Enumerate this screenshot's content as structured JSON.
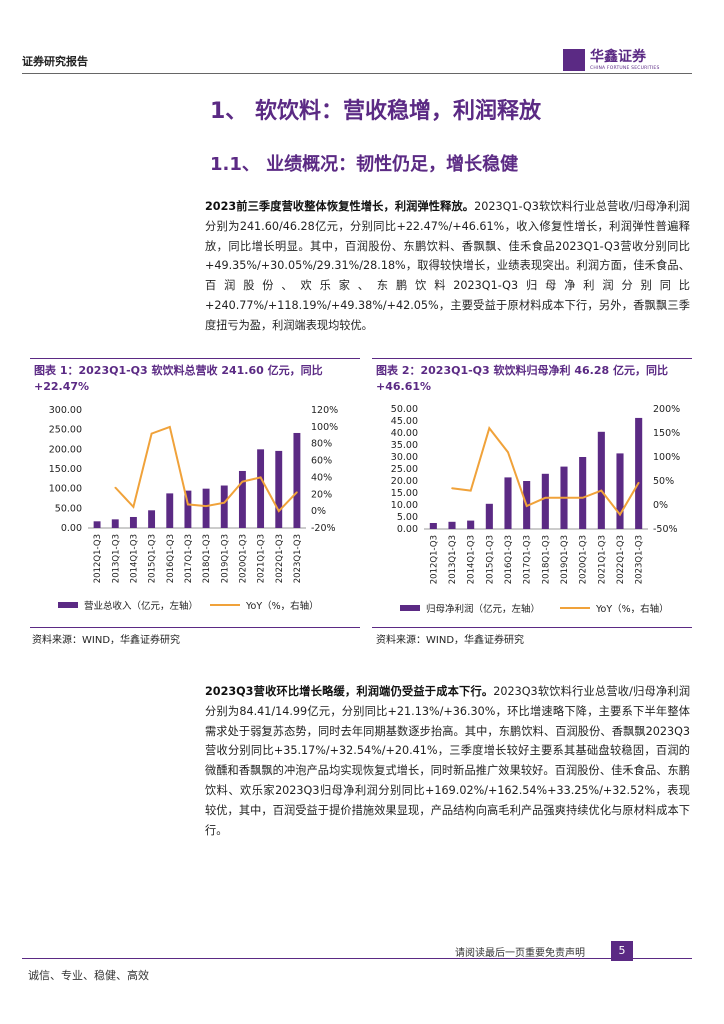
{
  "header": {
    "label": "证券研究报告",
    "logo_cn": "华鑫证券",
    "logo_en": "CHINA FORTUNE SECURITIES"
  },
  "headings": {
    "h1": "1、 软饮料：营收稳增，利润释放",
    "h2": "1.1、 业绩概况：韧性仍足，增长稳健"
  },
  "para1": {
    "bold": "2023前三季度营收整体恢复性增长，利润弹性释放。",
    "text": "2023Q1-Q3软饮料行业总营收/归母净利润分别为241.60/46.28亿元，分别同比+22.47%/+46.61%，收入修复性增长，利润弹性普遍释放，同比增长明显。其中，百润股份、东鹏饮料、香飘飘、佳禾食品2023Q1-Q3营收分别同比+49.35%/+30.05%/29.31%/28.18%，取得较快增长，业绩表现突出。利润方面，佳禾食品、百润股份、欢乐家、东鹏饮料2023Q1-Q3归母净利润分别同比+240.77%/+118.19%/+49.38%/+42.05%，主要受益于原材料成本下行，另外，香飘飘三季度扭亏为盈，利润端表现均较优。"
  },
  "fig1": {
    "title": "图表 1：2023Q1-Q3 软饮料总营收 241.60 亿元，同比+22.47%",
    "source": "资料来源：WIND，华鑫证券研究"
  },
  "fig2": {
    "title": "图表 2：2023Q1-Q3 软饮料归母净利 46.28 亿元，同比+46.61%",
    "source": "资料来源：WIND，华鑫证券研究"
  },
  "para2": {
    "bold": "2023Q3营收环比增长略缓，利润端仍受益于成本下行。",
    "text": "2023Q3软饮料行业总营收/归母净利润分别为84.41/14.99亿元，分别同比+21.13%/+36.30%，环比增速略下降，主要系下半年整体需求处于弱复苏态势，同时去年同期基数逐步抬高。其中，东鹏饮料、百润股份、香飘飘2023Q3营收分别同比+35.17%/+32.54%/+20.41%，三季度增长较好主要系其基础盘较稳固，百润的微醺和香飘飘的冲泡产品均实现恢复式增长，同时新品推广效果较好。百润股份、佳禾食品、东鹏饮料、欢乐家2023Q3归母净利润分别同比+169.02%/+162.54%+33.25%/+32.52%，表现较优，其中，百润受益于提价措施效果显现，产品结构向高毛利产品强爽持续优化与原材料成本下行。"
  },
  "footer": {
    "note": "请阅读最后一页重要免责声明",
    "page": "5",
    "motto": "诚信、专业、稳健、高效"
  },
  "chart_data": [
    {
      "type": "bar",
      "title": "2023Q1-Q3软饮料总营收241.60亿元，同比+22.47%",
      "categories": [
        "2012Q1-Q3",
        "2013Q1-Q3",
        "2014Q1-Q3",
        "2015Q1-Q3",
        "2016Q1-Q3",
        "2017Q1-Q3",
        "2018Q1-Q3",
        "2019Q1-Q3",
        "2020Q1-Q3",
        "2021Q1-Q3",
        "2022Q1-Q3",
        "2023Q1-Q3"
      ],
      "series": [
        {
          "name": "营业总收入（亿元，左轴）",
          "axis": "left",
          "kind": "bar",
          "values": [
            17,
            22,
            28,
            45,
            88,
            95,
            100,
            108,
            145,
            200,
            196,
            241.6
          ]
        },
        {
          "name": "YoY（%，右轴）",
          "axis": "right",
          "kind": "line",
          "values": [
            null,
            28,
            5,
            92,
            100,
            8,
            6,
            10,
            35,
            40,
            0,
            22.47
          ]
        }
      ],
      "left_ticks": [
        "0.00",
        "50.00",
        "100.00",
        "150.00",
        "200.00",
        "250.00",
        "300.00"
      ],
      "right_ticks": [
        "-20%",
        "0%",
        "20%",
        "40%",
        "60%",
        "80%",
        "100%",
        "120%"
      ],
      "ylim_left": [
        0,
        300
      ],
      "ylim_right": [
        -20,
        120
      ],
      "legend": [
        "营业总收入（亿元，左轴）",
        "YoY（%，右轴）"
      ]
    },
    {
      "type": "bar",
      "title": "2023Q1-Q3软饮料归母净利46.28亿元，同比+46.61%",
      "categories": [
        "2012Q1-Q3",
        "2013Q1-Q3",
        "2014Q1-Q3",
        "2015Q1-Q3",
        "2016Q1-Q3",
        "2017Q1-Q3",
        "2018Q1-Q3",
        "2019Q1-Q3",
        "2020Q1-Q3",
        "2021Q1-Q3",
        "2022Q1-Q3",
        "2023Q1-Q3"
      ],
      "series": [
        {
          "name": "归母净利润（亿元，左轴）",
          "axis": "left",
          "kind": "bar",
          "values": [
            2.5,
            3,
            3.5,
            10.5,
            21.5,
            20,
            23,
            26,
            30,
            40.5,
            31.5,
            46.28
          ]
        },
        {
          "name": "YoY（%，右轴）",
          "axis": "right",
          "kind": "line",
          "values": [
            null,
            35,
            30,
            160,
            110,
            -2,
            15,
            15,
            15,
            30,
            -20,
            46.61
          ]
        }
      ],
      "left_ticks": [
        "0.00",
        "5.00",
        "10.00",
        "15.00",
        "20.00",
        "25.00",
        "30.00",
        "35.00",
        "40.00",
        "45.00",
        "50.00"
      ],
      "right_ticks": [
        "-50%",
        "0%",
        "50%",
        "100%",
        "150%",
        "200%"
      ],
      "ylim_left": [
        0,
        50
      ],
      "ylim_right": [
        -50,
        200
      ],
      "legend": [
        "归母净利润（亿元，左轴）",
        "YoY（%，右轴）"
      ]
    }
  ],
  "colors": {
    "accent": "#5b2a84",
    "bar": "#5b2a84",
    "line": "#f0a23a"
  }
}
